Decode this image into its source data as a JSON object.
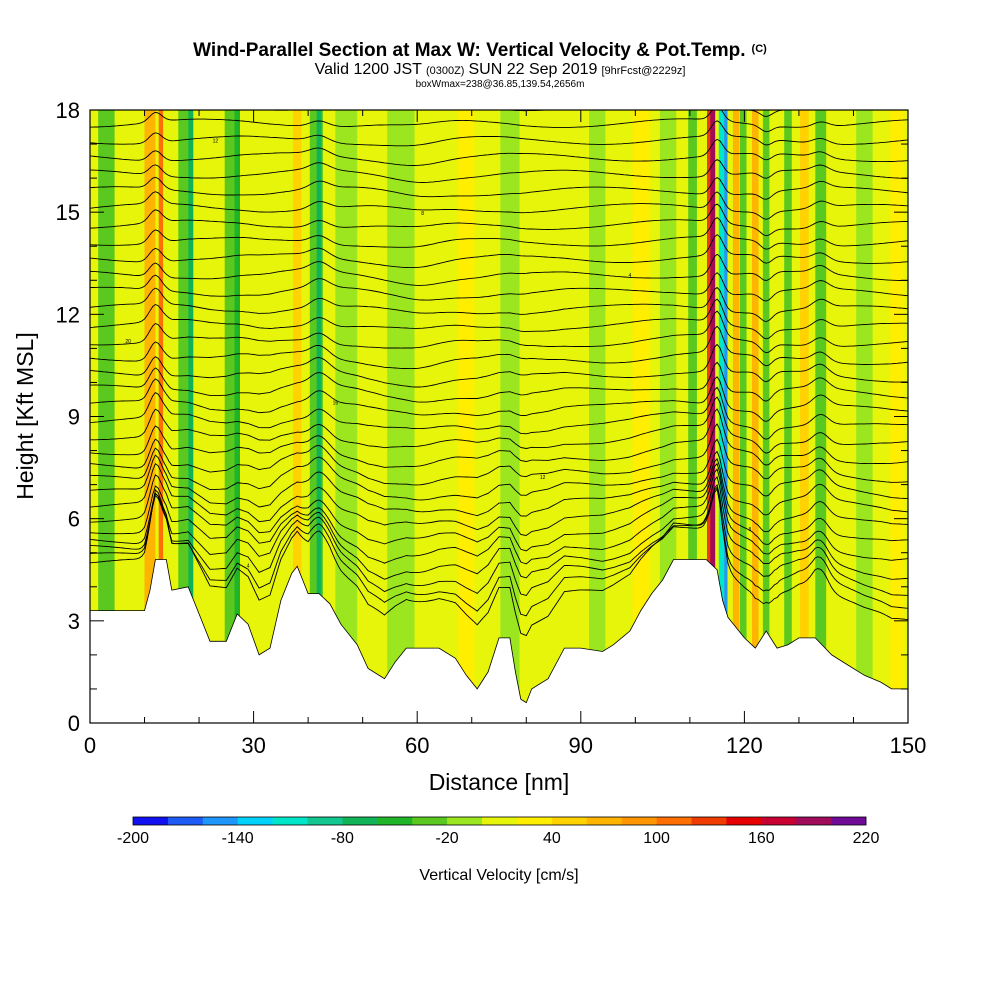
{
  "chart_data": {
    "type": "heatmap",
    "title": "Wind-Parallel Section at Max W: Vertical Velocity & Pot.Temp.",
    "title_mark": "(C)",
    "subtitle_main_a": "Valid 1200 JST",
    "subtitle_utc": "(0300Z)",
    "subtitle_main_b": "SUN 22 Sep 2019",
    "subtitle_fcst": "[9hrFcst@2229z]",
    "subtitle2": "boxWmax=238@36.85,139.54,2656m",
    "xlabel": "Distance [nm]",
    "ylabel": "Height [Kft MSL]",
    "xlim": [
      0,
      150
    ],
    "ylim": [
      0,
      18
    ],
    "x_ticks": [
      0,
      30,
      60,
      90,
      120,
      150
    ],
    "y_ticks": [
      0,
      3,
      6,
      9,
      12,
      15,
      18
    ],
    "colorbar": {
      "label": "Vertical Velocity [cm/s]",
      "tick_labels": [
        "-200",
        "-140",
        "-80",
        "-20",
        "40",
        "100",
        "160",
        "220"
      ],
      "tick_values": [
        -200,
        -140,
        -80,
        -20,
        40,
        100,
        160,
        220
      ],
      "bins": [
        {
          "from": -200,
          "to": -180,
          "color": "#1010f0"
        },
        {
          "from": -180,
          "to": -160,
          "color": "#1e5af6"
        },
        {
          "from": -160,
          "to": -140,
          "color": "#1e96fa"
        },
        {
          "from": -140,
          "to": -120,
          "color": "#00d2fa"
        },
        {
          "from": -120,
          "to": -100,
          "color": "#00e6c8"
        },
        {
          "from": -100,
          "to": -80,
          "color": "#12c890"
        },
        {
          "from": -80,
          "to": -60,
          "color": "#10b456"
        },
        {
          "from": -60,
          "to": -40,
          "color": "#20b428"
        },
        {
          "from": -40,
          "to": -20,
          "color": "#5ac81e"
        },
        {
          "from": -20,
          "to": 0,
          "color": "#9be61e"
        },
        {
          "from": 0,
          "to": 20,
          "color": "#e6f50a"
        },
        {
          "from": 20,
          "to": 40,
          "color": "#ffee00"
        },
        {
          "from": 40,
          "to": 60,
          "color": "#ffd200"
        },
        {
          "from": 60,
          "to": 80,
          "color": "#ffb400"
        },
        {
          "from": 80,
          "to": 100,
          "color": "#ff9600"
        },
        {
          "from": 100,
          "to": 120,
          "color": "#ff6e00"
        },
        {
          "from": 120,
          "to": 140,
          "color": "#f03c00"
        },
        {
          "from": 140,
          "to": 160,
          "color": "#e60000"
        },
        {
          "from": 160,
          "to": 180,
          "color": "#c80032"
        },
        {
          "from": 180,
          "to": 200,
          "color": "#a00a5a"
        },
        {
          "from": 200,
          "to": 220,
          "color": "#6e0a96"
        }
      ]
    },
    "field_bands": [
      {
        "x": 3,
        "w": 3.0,
        "value": -30
      },
      {
        "x": 11,
        "w": 2.0,
        "value": 70
      },
      {
        "x": 13,
        "w": 0.8,
        "value": 100
      },
      {
        "x": 17.5,
        "w": 2.6,
        "value": -30
      },
      {
        "x": 18.5,
        "w": 0.9,
        "value": -70
      },
      {
        "x": 26,
        "w": 2.6,
        "value": -30
      },
      {
        "x": 27,
        "w": 1.0,
        "value": -60
      },
      {
        "x": 38,
        "w": 1.5,
        "value": 50
      },
      {
        "x": 41.5,
        "w": 2.4,
        "value": -30
      },
      {
        "x": 42,
        "w": 0.9,
        "value": -70
      },
      {
        "x": 47,
        "w": 4.0,
        "value": -15
      },
      {
        "x": 57,
        "w": 5.0,
        "value": -12
      },
      {
        "x": 69,
        "w": 3.0,
        "value": 25
      },
      {
        "x": 77,
        "w": 3.5,
        "value": -12
      },
      {
        "x": 93,
        "w": 3.0,
        "value": -12
      },
      {
        "x": 101,
        "w": 3.0,
        "value": 25
      },
      {
        "x": 106,
        "w": 3.0,
        "value": -15
      },
      {
        "x": 110.5,
        "w": 1.6,
        "value": -30
      },
      {
        "x": 113.5,
        "w": 0.7,
        "value": 120
      },
      {
        "x": 114.2,
        "w": 0.9,
        "value": 180
      },
      {
        "x": 115.8,
        "w": 1.0,
        "value": -110
      },
      {
        "x": 116.6,
        "w": 0.6,
        "value": -150
      },
      {
        "x": 118.5,
        "w": 1.2,
        "value": 60
      },
      {
        "x": 119.8,
        "w": 1.2,
        "value": -40
      },
      {
        "x": 122,
        "w": 1.2,
        "value": 60
      },
      {
        "x": 124,
        "w": 1.2,
        "value": -30
      },
      {
        "x": 128,
        "w": 1.4,
        "value": -40
      },
      {
        "x": 131,
        "w": 1.6,
        "value": 40
      },
      {
        "x": 134,
        "w": 2.0,
        "value": -30
      },
      {
        "x": 142,
        "w": 3.0,
        "value": -12
      },
      {
        "x": 148,
        "w": 2.5,
        "value": 20
      }
    ],
    "terrain_kft": [
      [
        0,
        3.3
      ],
      [
        10,
        3.3
      ],
      [
        11,
        3.9
      ],
      [
        12,
        4.8
      ],
      [
        14,
        4.8
      ],
      [
        15,
        3.9
      ],
      [
        18,
        4.0
      ],
      [
        20,
        3.2
      ],
      [
        22,
        2.4
      ],
      [
        25,
        2.4
      ],
      [
        27,
        3.2
      ],
      [
        29,
        2.9
      ],
      [
        31,
        2.0
      ],
      [
        33,
        2.2
      ],
      [
        35,
        3.6
      ],
      [
        37,
        4.4
      ],
      [
        38,
        4.6
      ],
      [
        39,
        4.2
      ],
      [
        40,
        3.8
      ],
      [
        42,
        3.8
      ],
      [
        44,
        3.5
      ],
      [
        46,
        2.9
      ],
      [
        49,
        2.3
      ],
      [
        51,
        1.6
      ],
      [
        54,
        1.3
      ],
      [
        56,
        1.8
      ],
      [
        58,
        2.2
      ],
      [
        64,
        2.2
      ],
      [
        67,
        1.9
      ],
      [
        69,
        1.4
      ],
      [
        71,
        1.0
      ],
      [
        73,
        1.5
      ],
      [
        75,
        2.5
      ],
      [
        77,
        2.5
      ],
      [
        78,
        1.5
      ],
      [
        79,
        0.7
      ],
      [
        80,
        0.6
      ],
      [
        81,
        1.0
      ],
      [
        84,
        1.3
      ],
      [
        87,
        2.2
      ],
      [
        90,
        2.2
      ],
      [
        94,
        2.1
      ],
      [
        96,
        2.3
      ],
      [
        99,
        2.7
      ],
      [
        101,
        3.3
      ],
      [
        103,
        3.8
      ],
      [
        105,
        4.2
      ],
      [
        107,
        4.8
      ],
      [
        109,
        4.8
      ],
      [
        113,
        4.8
      ],
      [
        115,
        4.5
      ],
      [
        116,
        3.6
      ],
      [
        117,
        3.1
      ],
      [
        118,
        2.9
      ],
      [
        120,
        2.5
      ],
      [
        122,
        2.2
      ],
      [
        124,
        2.7
      ],
      [
        126,
        2.2
      ],
      [
        128,
        2.3
      ],
      [
        130,
        2.5
      ],
      [
        133,
        2.5
      ],
      [
        136,
        2.0
      ],
      [
        139,
        1.7
      ],
      [
        142,
        1.4
      ],
      [
        145,
        1.2
      ],
      [
        147,
        1.0
      ],
      [
        150,
        1.0
      ]
    ],
    "theta_contours": {
      "count": 34,
      "base_kft": 2.6,
      "spacing_kft": 0.5
    },
    "contour_labels": [
      "4",
      "8",
      "12",
      "16",
      "20"
    ]
  }
}
